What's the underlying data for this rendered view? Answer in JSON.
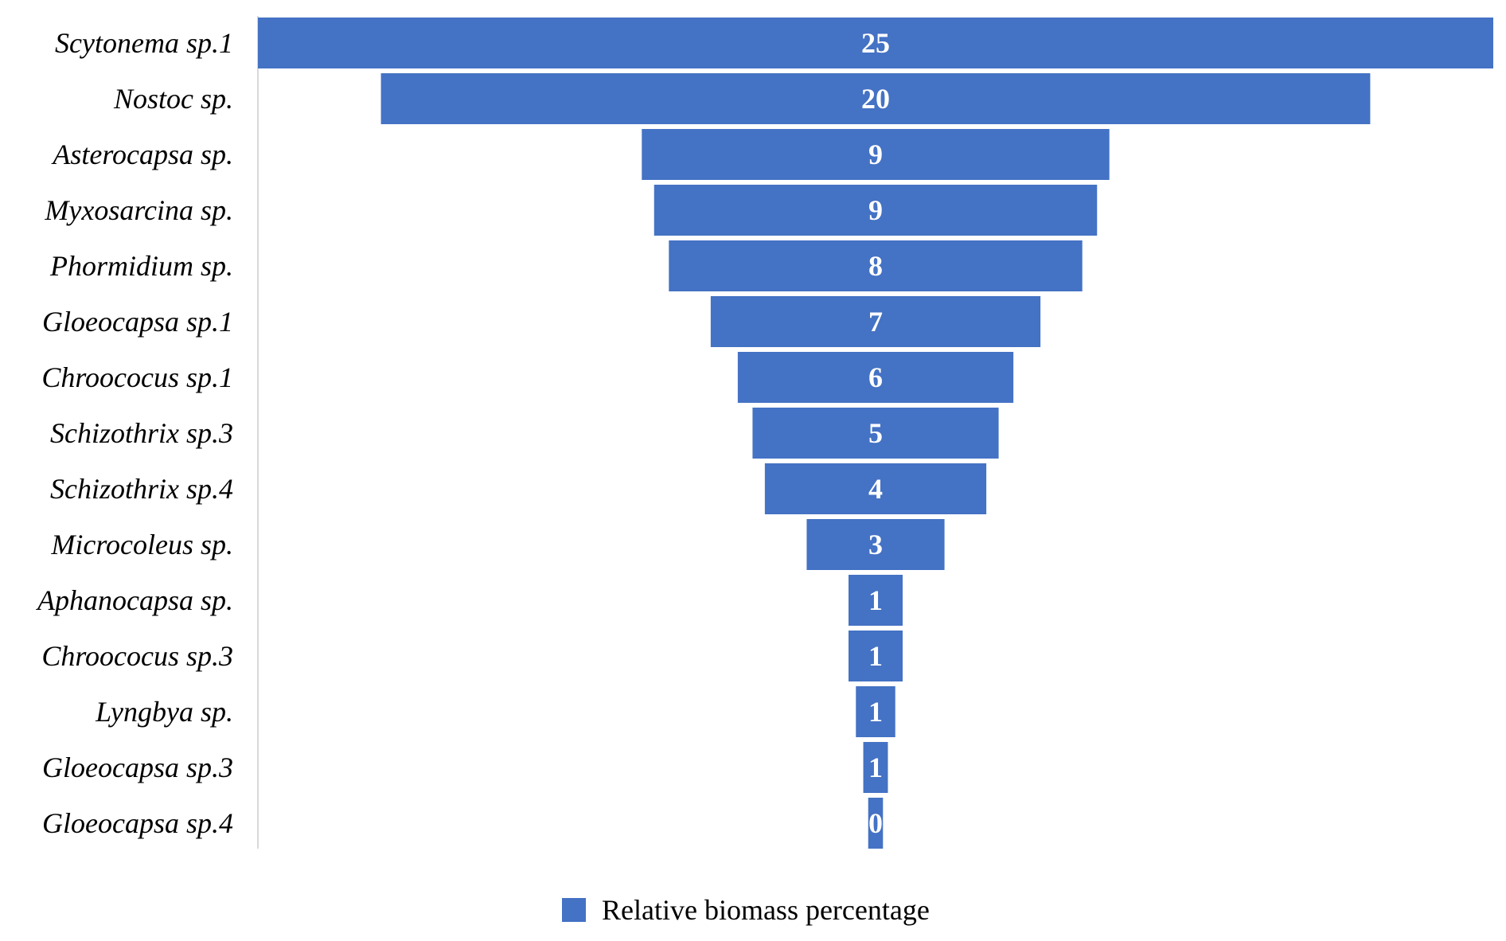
{
  "chart_data": {
    "type": "bar",
    "orientation": "horizontal-funnel",
    "title": "",
    "xlabel": "",
    "ylabel": "",
    "categories": [
      "Scytonema sp.1",
      "Nostoc sp.",
      "Asterocapsa sp.",
      "Myxosarcina sp.",
      "Phormidium sp.",
      "Gloeocapsa sp.1",
      "Chroococus sp.1",
      "Schizothrix sp.3",
      "Schizothrix sp.4",
      "Microcoleus sp.",
      "Aphanocapsa sp.",
      "Chroococus sp.3",
      "Lyngbya sp.",
      "Gloeocapsa sp.3",
      "Gloeocapsa sp.4"
    ],
    "series": [
      {
        "name": "Relative biomass percentage",
        "color": "#4472c4",
        "values": [
          25.1,
          20.1,
          9.5,
          9.0,
          8.4,
          6.7,
          5.6,
          5.0,
          4.5,
          2.8,
          1.1,
          1.1,
          0.8,
          0.5,
          0.3
        ],
        "data_labels": [
          "25",
          "20",
          "9",
          "9",
          "8",
          "7",
          "6",
          "5",
          "4",
          "3",
          "1",
          "1",
          "1",
          "1",
          "0"
        ]
      }
    ],
    "legend": {
      "position": "bottom",
      "entries": [
        "Relative biomass percentage"
      ]
    },
    "grid": false
  }
}
